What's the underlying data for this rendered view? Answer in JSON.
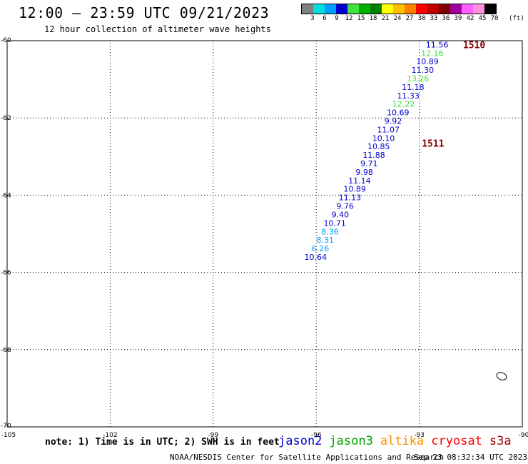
{
  "title": "12:00 – 23:59 UTC 09/21/2023",
  "subtitle": "12 hour collection of altimeter wave heights",
  "legend": {
    "colors": [
      "#808080",
      "#00e0e0",
      "#00a0ff",
      "#0000d0",
      "#40e040",
      "#00b000",
      "#008000",
      "#ffff00",
      "#ffc000",
      "#ff8000",
      "#ff0000",
      "#c00000",
      "#800000",
      "#a000a0",
      "#ff60ff",
      "#ff90e0",
      "#000000"
    ],
    "labels": [
      "3",
      "6",
      "9",
      "12",
      "15",
      "18",
      "21",
      "24",
      "27",
      "30",
      "33",
      "36",
      "39",
      "42",
      "45",
      "70"
    ],
    "unit": "(ft)"
  },
  "map": {
    "lon_range": [
      -105,
      -90
    ],
    "lat_range": [
      -70,
      -60
    ],
    "lon_ticks": [
      "-105",
      "-102",
      "-99",
      "-96",
      "-93",
      "-90"
    ],
    "lat_ticks": [
      "-60",
      "-62",
      "-64",
      "-66",
      "-68",
      "-70"
    ],
    "grid_lons": [
      -102,
      -99,
      -96,
      -93
    ],
    "grid_lats": [
      -62,
      -64,
      -66,
      -68
    ],
    "pass_labels": [
      {
        "text": "1510",
        "lon": -91.4,
        "lat": -60.1,
        "color": "#800000"
      },
      {
        "text": "1511",
        "lon": -92.6,
        "lat": -62.65,
        "color": "#800000"
      }
    ],
    "observations": [
      {
        "value": "11.56",
        "lon": -92.48,
        "lat": -60.1,
        "color": "#0000d0"
      },
      {
        "value": "12.16",
        "lon": -92.62,
        "lat": -60.32,
        "color": "#40e040"
      },
      {
        "value": "10.89",
        "lon": -92.76,
        "lat": -60.54,
        "color": "#0000d0"
      },
      {
        "value": "11.30",
        "lon": -92.9,
        "lat": -60.76,
        "color": "#0000d0"
      },
      {
        "value": "13.26",
        "lon": -93.04,
        "lat": -60.98,
        "color": "#40e040"
      },
      {
        "value": "11.18",
        "lon": -93.18,
        "lat": -61.2,
        "color": "#0000d0"
      },
      {
        "value": "11.33",
        "lon": -93.32,
        "lat": -61.42,
        "color": "#0000d0"
      },
      {
        "value": "12.22",
        "lon": -93.46,
        "lat": -61.64,
        "color": "#40e040"
      },
      {
        "value": "10.69",
        "lon": -93.62,
        "lat": -61.86,
        "color": "#0000d0"
      },
      {
        "value": "9.92",
        "lon": -93.76,
        "lat": -62.08,
        "color": "#0000d0"
      },
      {
        "value": "11.07",
        "lon": -93.9,
        "lat": -62.3,
        "color": "#0000d0"
      },
      {
        "value": "10.10",
        "lon": -94.04,
        "lat": -62.52,
        "color": "#0000d0"
      },
      {
        "value": "10.85",
        "lon": -94.18,
        "lat": -62.74,
        "color": "#0000d0"
      },
      {
        "value": "11.88",
        "lon": -94.32,
        "lat": -62.96,
        "color": "#0000d0"
      },
      {
        "value": "9.71",
        "lon": -94.46,
        "lat": -63.18,
        "color": "#0000d0"
      },
      {
        "value": "9.98",
        "lon": -94.6,
        "lat": -63.4,
        "color": "#0000d0"
      },
      {
        "value": "11.14",
        "lon": -94.74,
        "lat": -63.62,
        "color": "#0000d0"
      },
      {
        "value": "10.89",
        "lon": -94.88,
        "lat": -63.84,
        "color": "#0000d0"
      },
      {
        "value": "11.13",
        "lon": -95.02,
        "lat": -64.06,
        "color": "#0000d0"
      },
      {
        "value": "9.76",
        "lon": -95.16,
        "lat": -64.28,
        "color": "#0000d0"
      },
      {
        "value": "9.40",
        "lon": -95.3,
        "lat": -64.5,
        "color": "#0000d0"
      },
      {
        "value": "10.71",
        "lon": -95.46,
        "lat": -64.72,
        "color": "#0000d0"
      },
      {
        "value": "8.36",
        "lon": -95.6,
        "lat": -64.94,
        "color": "#00a0ff"
      },
      {
        "value": "8.31",
        "lon": -95.74,
        "lat": -65.16,
        "color": "#00a0ff"
      },
      {
        "value": "6.26",
        "lon": -95.88,
        "lat": -65.38,
        "color": "#00a0ff"
      },
      {
        "value": "10.64",
        "lon": -96.02,
        "lat": -65.6,
        "color": "#0000d0"
      }
    ]
  },
  "note": "note: 1) Time is in UTC; 2) SWH is in feet",
  "satellites": [
    {
      "name": "jason2",
      "color": "#0000d0"
    },
    {
      "name": "jason3",
      "color": "#00a000"
    },
    {
      "name": "altika",
      "color": "#ff9000"
    },
    {
      "name": "cryosat",
      "color": "#ff0000"
    },
    {
      "name": "s3a",
      "color": "#a00000"
    }
  ],
  "credit": "NOAA/NESDIS Center for Satellite Applications and Research",
  "timestamp": "Sep 23 08:32:34 UTC 2023"
}
